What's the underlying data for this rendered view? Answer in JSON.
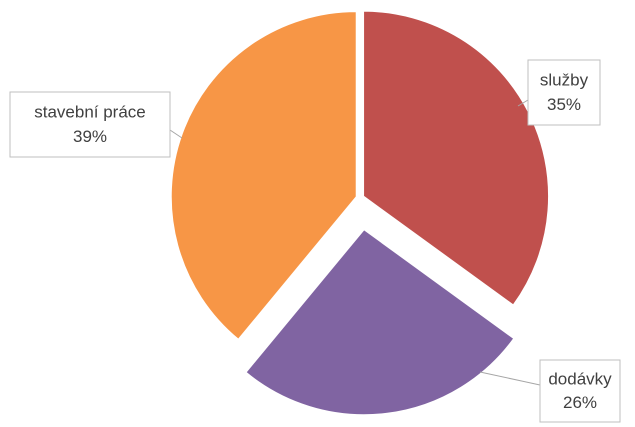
{
  "chart_data": {
    "type": "pie",
    "categories": [
      "služby",
      "dodávky",
      "stavební práce"
    ],
    "values": [
      35,
      26,
      39
    ],
    "value_labels": [
      "35%",
      "26%",
      "39%"
    ],
    "colors": [
      "#c0504d",
      "#8064a2",
      "#f79646"
    ]
  }
}
